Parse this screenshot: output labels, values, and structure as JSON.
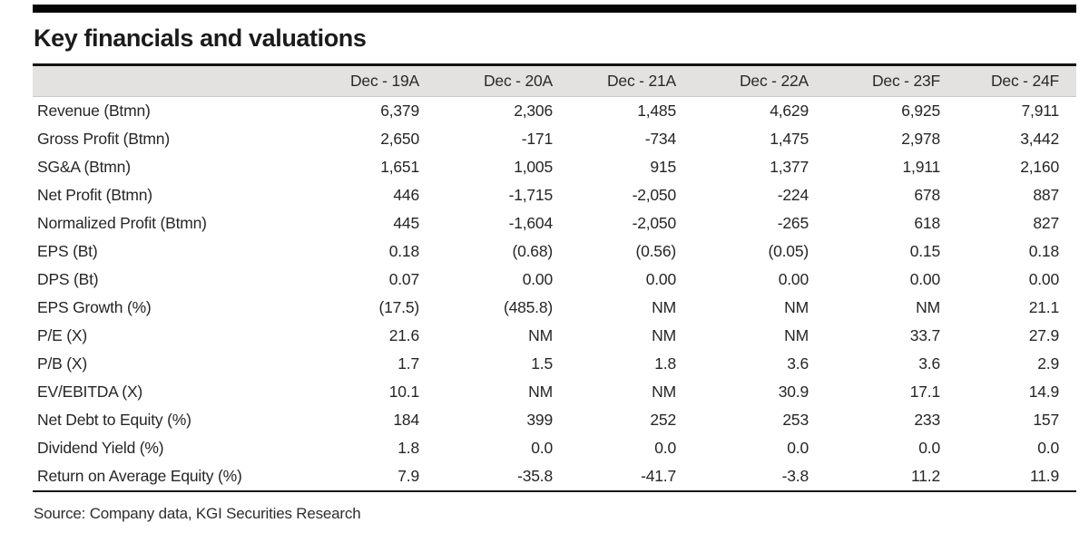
{
  "title": "Key financials and valuations",
  "source": "Source: Company data, KGI Securities Research",
  "style": {
    "header_bg": "#e3e2e0",
    "rule_color": "#141414"
  },
  "table": {
    "columns": [
      "Dec - 19A",
      "Dec - 20A",
      "Dec - 21A",
      "Dec - 22A",
      "Dec - 23F",
      "Dec - 24F"
    ],
    "rows": [
      {
        "label": "Revenue (Btmn)",
        "values": [
          "6,379",
          "2,306",
          "1,485",
          "4,629",
          "6,925",
          "7,911"
        ]
      },
      {
        "label": "Gross Profit (Btmn)",
        "values": [
          "2,650",
          "-171",
          "-734",
          "1,475",
          "2,978",
          "3,442"
        ]
      },
      {
        "label": "SG&A (Btmn)",
        "values": [
          "1,651",
          "1,005",
          "915",
          "1,377",
          "1,911",
          "2,160"
        ]
      },
      {
        "label": "Net Profit (Btmn)",
        "values": [
          "446",
          "-1,715",
          "-2,050",
          "-224",
          "678",
          "887"
        ]
      },
      {
        "label": "Normalized Profit (Btmn)",
        "values": [
          "445",
          "-1,604",
          "-2,050",
          "-265",
          "618",
          "827"
        ]
      },
      {
        "label": "EPS (Bt)",
        "values": [
          "0.18",
          "(0.68)",
          "(0.56)",
          "(0.05)",
          "0.15",
          "0.18"
        ]
      },
      {
        "label": "DPS (Bt)",
        "values": [
          "0.07",
          "0.00",
          "0.00",
          "0.00",
          "0.00",
          "0.00"
        ]
      },
      {
        "label": "EPS Growth (%)",
        "values": [
          "(17.5)",
          "(485.8)",
          "NM",
          "NM",
          "NM",
          "21.1"
        ]
      },
      {
        "label": "P/E (X)",
        "values": [
          "21.6",
          "NM",
          "NM",
          "NM",
          "33.7",
          "27.9"
        ]
      },
      {
        "label": "P/B (X)",
        "values": [
          "1.7",
          "1.5",
          "1.8",
          "3.6",
          "3.6",
          "2.9"
        ]
      },
      {
        "label": "EV/EBITDA (X)",
        "values": [
          "10.1",
          "NM",
          "NM",
          "30.9",
          "17.1",
          "14.9"
        ]
      },
      {
        "label": "Net Debt to Equity (%)",
        "values": [
          "184",
          "399",
          "252",
          "253",
          "233",
          "157"
        ]
      },
      {
        "label": "Dividend Yield (%)",
        "values": [
          "1.8",
          "0.0",
          "0.0",
          "0.0",
          "0.0",
          "0.0"
        ]
      },
      {
        "label": "Return on Average Equity (%)",
        "values": [
          "7.9",
          "-35.8",
          "-41.7",
          "-3.8",
          "11.2",
          "11.9"
        ]
      }
    ]
  }
}
